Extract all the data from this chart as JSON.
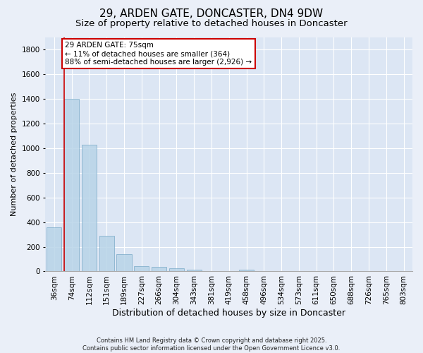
{
  "title": "29, ARDEN GATE, DONCASTER, DN4 9DW",
  "subtitle": "Size of property relative to detached houses in Doncaster",
  "xlabel": "Distribution of detached houses by size in Doncaster",
  "ylabel": "Number of detached properties",
  "bar_values": [
    360,
    1400,
    1030,
    290,
    140,
    40,
    35,
    25,
    15,
    5,
    0,
    15,
    0,
    0,
    0,
    0,
    0,
    0,
    0,
    0,
    0
  ],
  "bar_labels": [
    "36sqm",
    "74sqm",
    "112sqm",
    "151sqm",
    "189sqm",
    "227sqm",
    "266sqm",
    "304sqm",
    "343sqm",
    "381sqm",
    "419sqm",
    "458sqm",
    "496sqm",
    "534sqm",
    "573sqm",
    "611sqm",
    "650sqm",
    "688sqm",
    "726sqm",
    "765sqm",
    "803sqm"
  ],
  "bar_color": "#b8d4e8",
  "bar_edge_color": "#7aaac8",
  "bar_alpha": 0.85,
  "vline_x_idx": 1,
  "vline_color": "#cc0000",
  "annotation_line1": "29 ARDEN GATE: 75sqm",
  "annotation_line2": "← 11% of detached houses are smaller (364)",
  "annotation_line3": "88% of semi-detached houses are larger (2,926) →",
  "annotation_box_color": "white",
  "annotation_box_edgecolor": "#cc0000",
  "ylim": [
    0,
    1900
  ],
  "yticks": [
    0,
    200,
    400,
    600,
    800,
    1000,
    1200,
    1400,
    1600,
    1800
  ],
  "bg_color": "#eaeff8",
  "plot_bg_color": "#dce6f4",
  "footer": "Contains HM Land Registry data © Crown copyright and database right 2025.\nContains public sector information licensed under the Open Government Licence v3.0.",
  "title_fontsize": 11,
  "subtitle_fontsize": 9.5,
  "xlabel_fontsize": 9,
  "ylabel_fontsize": 8,
  "tick_fontsize": 7.5,
  "annotation_fontsize": 7.5,
  "footer_fontsize": 6
}
